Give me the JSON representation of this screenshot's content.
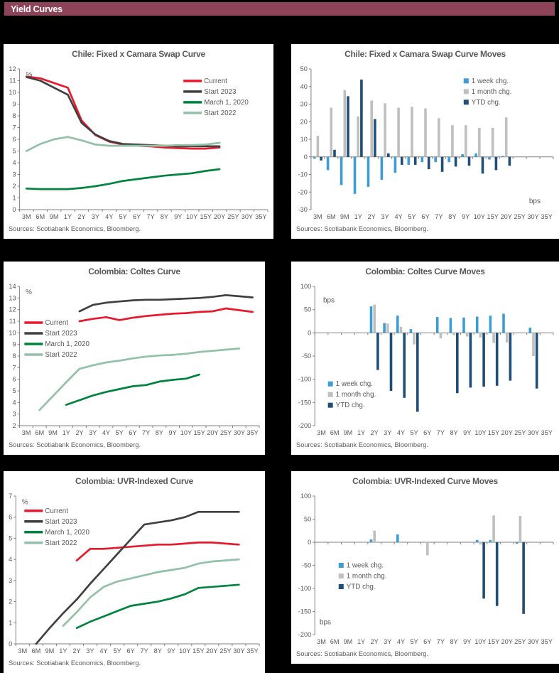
{
  "header": {
    "title": "Yield Curves"
  },
  "colors": {
    "header_bg": "#8E4458",
    "page_bg": "#000000",
    "panel_bg": "#FFFFFF",
    "text": "#595959",
    "axis": "#808080",
    "current_red": "#E8192C",
    "start2023_gray": "#404040",
    "march2020_green": "#00843D",
    "start2022_green": "#93C1A6",
    "week_blue": "#3B9CD6",
    "month_gray": "#BFBFBF",
    "ytd_navy": "#1F4E79"
  },
  "chart_data": [
    {
      "type": "line",
      "title": "Chile: Fixed x Camara Swap Curve",
      "unit": {
        "label": "%",
        "anchor": [
          0.025,
          0.055
        ]
      },
      "ylim": [
        0,
        12
      ],
      "ystep": 1,
      "categories": [
        "3M",
        "6M",
        "9M",
        "1Y",
        "2Y",
        "3Y",
        "4Y",
        "5Y",
        "6Y",
        "7Y",
        "8Y",
        "9Y",
        "10Y",
        "15Y",
        "20Y",
        "25Y",
        "30Y",
        "35Y"
      ],
      "legend": {
        "anchor": [
          0.66,
          0.085
        ],
        "swatch": "line"
      },
      "series": [
        {
          "name": "Current",
          "color": "#E8192C",
          "values": [
            11.35,
            11.2,
            10.8,
            10.4,
            7.6,
            6.35,
            5.8,
            5.55,
            5.45,
            5.4,
            5.3,
            5.25,
            5.2,
            5.2,
            5.3,
            null,
            null,
            null
          ]
        },
        {
          "name": "Start 2023",
          "color": "#404040",
          "values": [
            11.3,
            11.0,
            10.4,
            9.8,
            7.4,
            6.4,
            5.85,
            5.6,
            5.55,
            5.5,
            5.45,
            5.4,
            5.4,
            5.4,
            5.4,
            null,
            null,
            null
          ]
        },
        {
          "name": "March 1, 2020",
          "color": "#00843D",
          "values": [
            1.8,
            1.75,
            1.75,
            1.75,
            1.85,
            2.0,
            2.2,
            2.45,
            2.6,
            2.75,
            2.9,
            3.0,
            3.1,
            3.3,
            3.45,
            null,
            null,
            null
          ]
        },
        {
          "name": "Start 2022",
          "color": "#93C1A6",
          "values": [
            5.0,
            5.6,
            6.0,
            6.2,
            5.9,
            5.55,
            5.45,
            5.45,
            5.45,
            5.45,
            5.45,
            5.5,
            5.5,
            5.55,
            5.7,
            null,
            null,
            null
          ]
        }
      ],
      "sources": "Sources: Scotiabank Economics, Bloomberg."
    },
    {
      "type": "bar",
      "title": "Chile: Fixed x Camara Swap Curve Moves",
      "unit": {
        "label": "bps",
        "anchor": [
          0.9,
          0.955
        ]
      },
      "ylim": [
        -30,
        50
      ],
      "ystep": 10,
      "categories": [
        "3M",
        "6M",
        "9M",
        "1Y",
        "2Y",
        "3Y",
        "4Y",
        "5Y",
        "6Y",
        "7Y",
        "8Y",
        "9Y",
        "10Y",
        "15Y",
        "20Y",
        "25Y",
        "30Y",
        "35Y"
      ],
      "legend": {
        "anchor": [
          0.63,
          0.085
        ],
        "swatch": "square"
      },
      "series": [
        {
          "name": "1 week chg.",
          "color": "#3B9CD6",
          "values": [
            -1,
            -7.5,
            -16,
            -21,
            -17,
            -13,
            -9,
            -4.5,
            -3,
            -3,
            -3,
            1.5,
            2,
            -1.5,
            0.5,
            null,
            null,
            null
          ]
        },
        {
          "name": "1 month chg.",
          "color": "#BFBFBF",
          "values": [
            12,
            28,
            38,
            23,
            32,
            30.5,
            28,
            28.5,
            27.5,
            22,
            18,
            18,
            16.5,
            16.5,
            22.5,
            null,
            null,
            null
          ]
        },
        {
          "name": "YTD chg.",
          "color": "#1F4E79",
          "values": [
            -2,
            4,
            34.5,
            44,
            21.5,
            2,
            -4.5,
            -4.5,
            -7,
            -8.5,
            -5.5,
            -5,
            -9.5,
            -7.5,
            -5,
            null,
            null,
            null
          ]
        }
      ],
      "sources": "Sources: Scotiabank Economics, Bloomberg."
    },
    {
      "type": "line",
      "title": "Colombia: Coltes Curve",
      "unit": {
        "label": "%",
        "anchor": [
          0.025,
          0.055
        ]
      },
      "ylim": [
        2,
        14
      ],
      "ystep": 1,
      "categories": [
        "3M",
        "6M",
        "9M",
        "1Y",
        "2Y",
        "3Y",
        "4Y",
        "5Y",
        "6Y",
        "7Y",
        "8Y",
        "9Y",
        "10Y",
        "15Y",
        "20Y",
        "25Y",
        "30Y",
        "35Y"
      ],
      "legend": {
        "anchor": [
          0.02,
          0.26
        ],
        "swatch": "line"
      },
      "series": [
        {
          "name": "Current",
          "color": "#E8192C",
          "values": [
            null,
            null,
            null,
            null,
            11.0,
            11.2,
            11.35,
            11.1,
            11.3,
            11.45,
            11.55,
            11.65,
            11.7,
            11.8,
            11.85,
            12.1,
            11.95,
            11.8
          ]
        },
        {
          "name": "Start 2023",
          "color": "#404040",
          "values": [
            null,
            null,
            null,
            null,
            11.85,
            12.4,
            12.6,
            12.7,
            12.8,
            12.85,
            12.85,
            12.9,
            12.95,
            13.0,
            13.1,
            13.25,
            13.15,
            13.05
          ]
        },
        {
          "name": "March 1, 2020",
          "color": "#00843D",
          "values": [
            null,
            null,
            null,
            3.8,
            4.2,
            4.6,
            4.9,
            5.15,
            5.4,
            5.5,
            5.8,
            5.95,
            6.05,
            6.4,
            null,
            null,
            null,
            null
          ]
        },
        {
          "name": "Start 2022",
          "color": "#93C1A6",
          "values": [
            null,
            3.35,
            4.55,
            5.75,
            6.9,
            7.2,
            7.45,
            7.6,
            7.8,
            7.95,
            8.05,
            8.1,
            8.2,
            8.35,
            8.45,
            8.55,
            8.65,
            null
          ]
        }
      ],
      "sources": "Sources: Scotiabank Economics, Bloomberg."
    },
    {
      "type": "bar",
      "title": "Colombia: Coltes Curve Moves",
      "unit": {
        "label": "bps",
        "anchor": [
          0.035,
          0.115
        ]
      },
      "ylim": [
        -200,
        100
      ],
      "ystep": 50,
      "categories": [
        "3M",
        "6M",
        "9M",
        "1Y",
        "2Y",
        "3Y",
        "4Y",
        "5Y",
        "6Y",
        "7Y",
        "8Y",
        "9Y",
        "10Y",
        "15Y",
        "20Y",
        "25Y",
        "30Y",
        "35Y"
      ],
      "legend": {
        "anchor": [
          0.055,
          0.7
        ],
        "swatch": "square"
      },
      "series": [
        {
          "name": "1 week chg.",
          "color": "#3B9CD6",
          "values": [
            null,
            null,
            null,
            null,
            57,
            21,
            37,
            8,
            null,
            34,
            32,
            33,
            35,
            37,
            41,
            null,
            11,
            null
          ]
        },
        {
          "name": "1 month chg.",
          "color": "#BFBFBF",
          "values": [
            null,
            null,
            null,
            null,
            61,
            20,
            13,
            -25,
            null,
            -12,
            -5,
            -8,
            -10,
            -22,
            -21,
            null,
            -50,
            null
          ]
        },
        {
          "name": "YTD chg.",
          "color": "#1F4E79",
          "values": [
            null,
            null,
            null,
            null,
            -80,
            -125,
            -140,
            -170,
            null,
            null,
            -130,
            -118,
            -116,
            -114,
            -103,
            null,
            -120,
            null
          ]
        }
      ],
      "sources": "Sources: Scotiabank Economics, Bloomberg."
    },
    {
      "type": "line",
      "title": "Colombia: UVR-Indexed Curve",
      "unit": {
        "label": "%",
        "anchor": [
          0.025,
          0.055
        ]
      },
      "ylim": [
        0,
        7
      ],
      "ystep": 1,
      "categories": [
        "3M",
        "6M",
        "9M",
        "1Y",
        "2Y",
        "3Y",
        "4Y",
        "5Y",
        "6Y",
        "7Y",
        "8Y",
        "9Y",
        "10Y",
        "15Y",
        "20Y",
        "25Y",
        "30Y",
        "35Y"
      ],
      "legend": {
        "anchor": [
          0.035,
          0.1
        ],
        "swatch": "line"
      },
      "series": [
        {
          "name": "Current",
          "color": "#E8192C",
          "values": [
            null,
            null,
            null,
            null,
            3.95,
            4.5,
            4.5,
            4.55,
            4.6,
            4.65,
            4.7,
            4.7,
            4.75,
            4.8,
            4.8,
            4.75,
            4.7,
            null
          ]
        },
        {
          "name": "Start 2023",
          "color": "#404040",
          "values": [
            null,
            0.0,
            0.75,
            1.45,
            2.1,
            2.85,
            3.55,
            4.25,
            4.95,
            5.65,
            5.75,
            5.85,
            6.0,
            6.25,
            6.25,
            6.25,
            6.25,
            null
          ]
        },
        {
          "name": "March 1, 2020",
          "color": "#00843D",
          "values": [
            null,
            null,
            null,
            null,
            0.75,
            1.05,
            1.3,
            1.55,
            1.8,
            1.9,
            2.0,
            2.15,
            2.35,
            2.65,
            2.7,
            2.75,
            2.8,
            null
          ]
        },
        {
          "name": "Start 2022",
          "color": "#93C1A6",
          "values": [
            null,
            null,
            null,
            0.85,
            1.5,
            2.2,
            2.7,
            2.95,
            3.1,
            3.25,
            3.4,
            3.5,
            3.6,
            3.8,
            3.9,
            3.95,
            4.0,
            null
          ]
        }
      ],
      "sources": "Sources: Scotiabank Economics, Bloomberg."
    },
    {
      "type": "bar",
      "title": "Colombia: UVR-Indexed Curve Moves",
      "unit": {
        "label": "bps",
        "anchor": [
          0.02,
          0.925
        ]
      },
      "ylim": [
        -200,
        100
      ],
      "ystep": 50,
      "categories": [
        "3M",
        "6M",
        "9M",
        "1Y",
        "2Y",
        "3Y",
        "4Y",
        "5Y",
        "6Y",
        "7Y",
        "8Y",
        "9Y",
        "10Y",
        "15Y",
        "20Y",
        "25Y",
        "30Y",
        "35Y"
      ],
      "legend": {
        "anchor": [
          0.1,
          0.5
        ],
        "swatch": "square"
      },
      "series": [
        {
          "name": "1 week chg.",
          "color": "#3B9CD6",
          "values": [
            null,
            null,
            null,
            null,
            6,
            null,
            17,
            null,
            null,
            null,
            null,
            null,
            5,
            5,
            null,
            -3,
            null,
            null
          ]
        },
        {
          "name": "1 month chg.",
          "color": "#BFBFBF",
          "values": [
            null,
            null,
            null,
            null,
            25,
            null,
            null,
            null,
            -28,
            null,
            null,
            null,
            -5,
            58,
            null,
            57,
            null,
            null
          ]
        },
        {
          "name": "YTD chg.",
          "color": "#1F4E79",
          "values": [
            null,
            null,
            null,
            null,
            null,
            null,
            null,
            null,
            null,
            null,
            null,
            null,
            -122,
            -138,
            null,
            -155,
            null,
            null
          ]
        }
      ],
      "sources": "Sources: Scotiabank Economics, Bloomberg."
    }
  ]
}
